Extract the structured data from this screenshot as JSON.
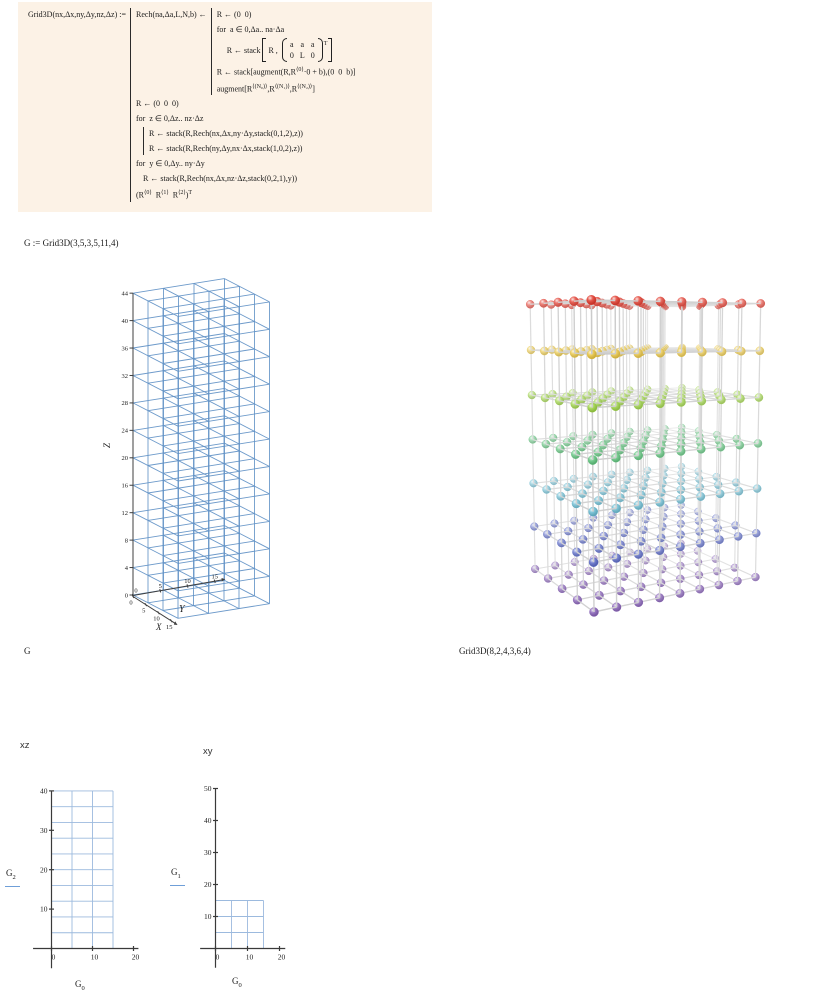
{
  "code_block": {
    "header": "Grid3D(nx,Δx,ny,Δy,nz,Δz) :=",
    "rech": {
      "signature": "Rech(na,Δa,L,N,b) ←",
      "line1": "R ← (0  0)",
      "line2": "for  a ∈ 0,Δa.. na·Δa",
      "line3_prefix": "R ← stack",
      "line3_r": "R ,",
      "matrix": {
        "rows": [
          [
            "a",
            "a",
            "a"
          ],
          [
            "0",
            "L",
            "0"
          ]
        ],
        "sup": "T"
      },
      "line4": {
        "p1": "R ← stack[augment(R,R",
        "s1": "⟨0⟩",
        "p2": "·0 + b),(0  0  b)]"
      },
      "line5": {
        "p1": "augment[R",
        "s1": "⟨(N₀)⟩",
        "p2": ",R",
        "s2": "⟨(N₁)⟩",
        "p3": ",R",
        "s3": "⟨(N₂)⟩",
        "p4": "]"
      }
    },
    "main": {
      "line1": "R ← (0  0  0)",
      "line2": "for  z ∈ 0,Δz.. nz·Δz",
      "line3": "R ← stack(R,Rech(nx,Δx,ny·Δy,stack(0,1,2),z))",
      "line4": "R ← stack(R,Rech(ny,Δy,nx·Δx,stack(1,0,2),z))",
      "line5": "for  y ∈ 0,Δy.. ny·Δy",
      "line6": "R ← stack(R,Rech(nx,Δx,nz·Δz,stack(0,2,1),y))",
      "line7": {
        "p1": "(R",
        "s1": "⟨0⟩",
        "p2": "  R",
        "s2": "⟨1⟩",
        "p3": "  R",
        "s3": "⟨2⟩",
        "p4": ")",
        "sup": "T"
      }
    }
  },
  "definition": "G := Grid3D(3,5,3,5,11,4)",
  "chart_data": [
    {
      "id": "wire3d",
      "type": "scatter",
      "render": "3d-wireframe-lattice",
      "expression": "G",
      "source": "G = Grid3D(3,5,3,5,11,4)",
      "x": {
        "min": 0,
        "max": 15,
        "step": 5,
        "label": "X",
        "ticks": [
          0,
          5,
          10,
          15
        ]
      },
      "y": {
        "min": 0,
        "max": 15,
        "step": 5,
        "label": "Y",
        "ticks": [
          0,
          5,
          10,
          15
        ]
      },
      "z": {
        "min": 0,
        "max": 44,
        "step": 4,
        "label": "Z",
        "ticks": [
          0,
          4,
          8,
          12,
          16,
          20,
          24,
          28,
          32,
          36,
          40,
          44
        ]
      },
      "line_color": "#6191c6",
      "axis_color": "#3f3f3f"
    },
    {
      "id": "balls3d",
      "type": "scatter",
      "render": "3d-ball-and-stick-lattice",
      "expression": "Grid3D(8,2,4,3,6,4)",
      "x": {
        "min": 0,
        "max": 16,
        "step": 2
      },
      "y": {
        "min": 0,
        "max": 12,
        "step": 3
      },
      "z": {
        "min": 0,
        "max": 24,
        "step": 4
      },
      "stick_color": "#c2c2c2",
      "layer_colors_bottom_to_top": [
        "#7a4fb0",
        "#4f5fc4",
        "#5fb7cf",
        "#58c177",
        "#9ad23f",
        "#e9c43e",
        "#e2392c"
      ]
    },
    {
      "id": "xz",
      "type": "table",
      "render": "2d-grid",
      "title": "xz",
      "xlabel": {
        "base": "G",
        "sub": "0"
      },
      "ylabel": {
        "base": "G",
        "sub": "2"
      },
      "x": {
        "ticks": [
          0,
          10,
          20
        ],
        "grid_max": 15,
        "grid_step": 5,
        "axis_min": -4.5,
        "axis_max": 21.2
      },
      "y": {
        "ticks": [
          10,
          20,
          30,
          40
        ],
        "grid_max": 40,
        "grid_step": 4,
        "axis_min": -5,
        "axis_max": 40
      },
      "grid_color": "#9cbade",
      "axis_color": "#3a3a3a"
    },
    {
      "id": "xy",
      "type": "table",
      "render": "2d-grid",
      "title": "xy",
      "xlabel": {
        "base": "G",
        "sub": "0"
      },
      "ylabel": {
        "base": "G",
        "sub": "1"
      },
      "x": {
        "ticks": [
          0,
          10,
          20
        ],
        "grid_max": 15,
        "grid_step": 5,
        "axis_min": -4.8,
        "axis_max": 21.8
      },
      "y": {
        "ticks": [
          10,
          20,
          30,
          40,
          50
        ],
        "grid_max": 15,
        "grid_step": 5,
        "axis_min": -6,
        "axis_max": 50
      },
      "grid_color": "#9cbade",
      "axis_color": "#3a3a3a"
    }
  ],
  "accent": {
    "legend_underline": "#6f9fd8",
    "program_bg": "#fcf2e6"
  }
}
